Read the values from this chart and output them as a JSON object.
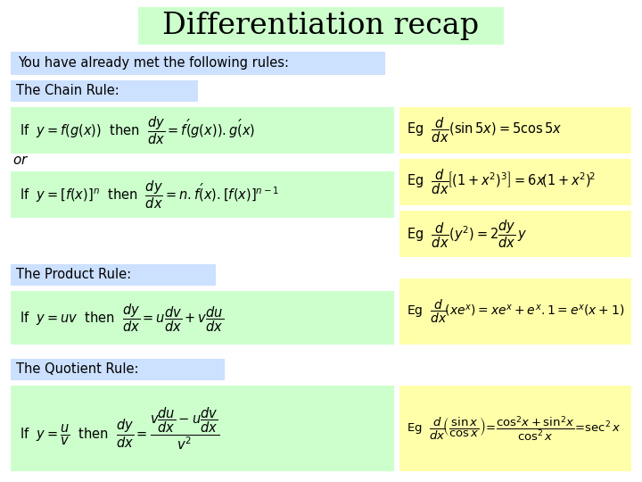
{
  "title": "Differentiation recap",
  "title_fontsize": 24,
  "title_bg": "#ccffcc",
  "bg_color": "#ffffff",
  "intro_text": "You have already met the following rules:",
  "intro_bg": "#cce0ff",
  "chain_rule_label": "The Chain Rule:",
  "formula_bg": "#ccffcc",
  "product_rule_label": "The Product Rule:",
  "quotient_rule_label": "The Quotient Rule:",
  "example_bg": "#ffffaa"
}
